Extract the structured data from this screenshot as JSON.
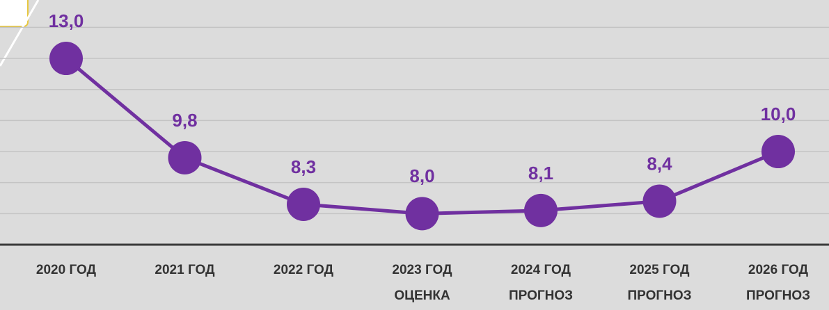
{
  "chart_data": {
    "type": "line",
    "categories": [
      "2020 ГОД",
      "2021 ГОД",
      "2022 ГОД",
      "2023 ГОД\nОЦЕНКА",
      "2024 ГОД\nПРОГНОЗ",
      "2025 ГОД\nПРОГНОЗ",
      "2026 ГОД\nПРОГНОЗ"
    ],
    "series": [
      {
        "color": "#7030a0",
        "values": [
          13.0,
          9.8,
          8.3,
          8.0,
          8.1,
          8.4,
          10.0
        ],
        "value_labels": [
          "13,0",
          "9,8",
          "8,3",
          "8,0",
          "8,1",
          "8,4",
          "10,0"
        ]
      }
    ],
    "ylim": [
      7,
      14
    ],
    "yticks": [
      8,
      9,
      10,
      11,
      12,
      13,
      14
    ],
    "grid": true
  }
}
